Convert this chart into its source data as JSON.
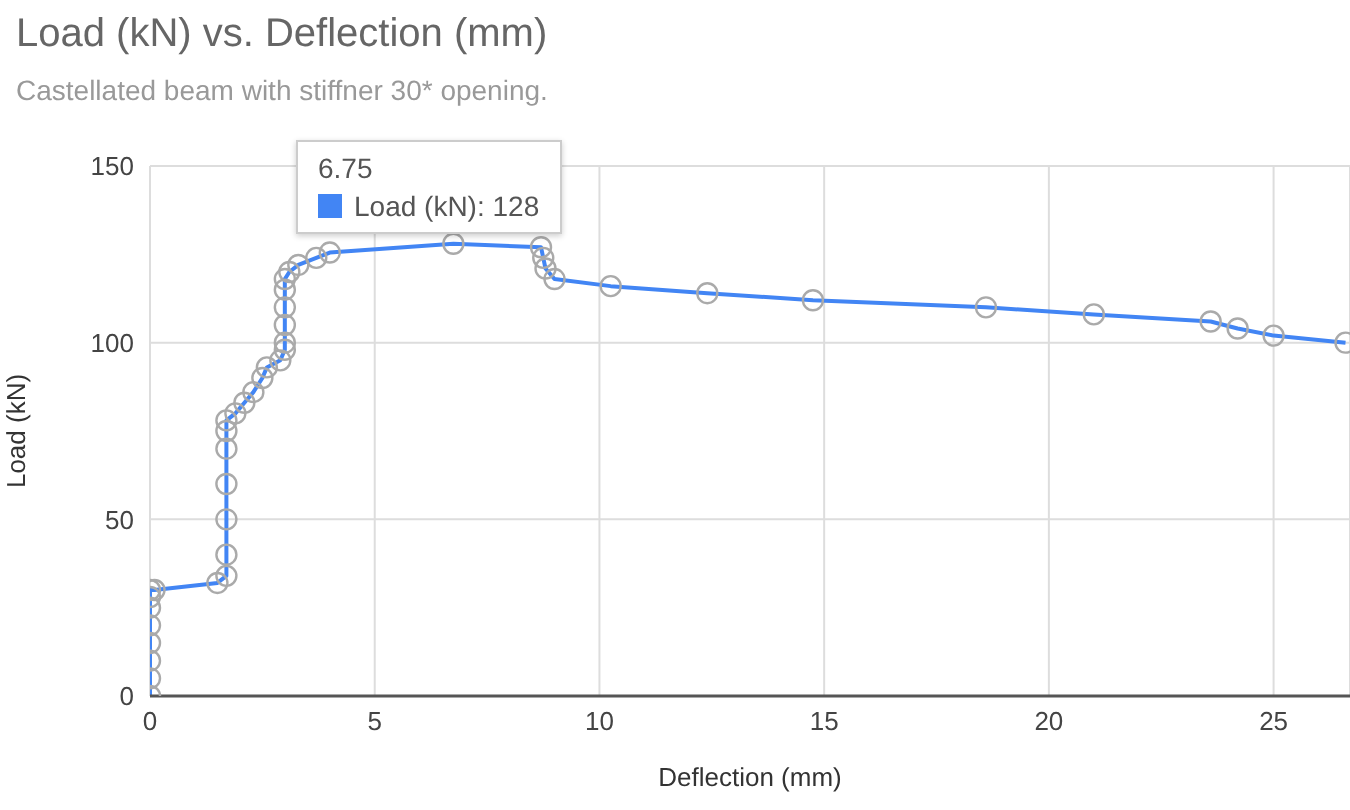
{
  "chart_data": {
    "type": "line",
    "title": "Load (kN) vs. Deflection (mm)",
    "subtitle": "Castellated beam with stiffner 30* opening.",
    "xlabel": "Deflection (mm)",
    "ylabel": "Load (kN)",
    "x": [
      0,
      0,
      0,
      0,
      0,
      0,
      0,
      0,
      0.1,
      1.5,
      1.7,
      1.7,
      1.7,
      1.7,
      1.7,
      1.7,
      1.7,
      1.9,
      2.1,
      2.3,
      2.5,
      2.6,
      2.9,
      3.0,
      3.0,
      3.0,
      3.0,
      3.0,
      3.0,
      3.1,
      3.3,
      3.7,
      4.0,
      6.75,
      8.7,
      8.75,
      8.8,
      9.0,
      10.25,
      12.4,
      14.75,
      18.6,
      21.0,
      23.6,
      24.2,
      25.0,
      26.6
    ],
    "series": [
      {
        "color": "#4285f4",
        "values": [
          0,
          5,
          10,
          15,
          20,
          25,
          28,
          30,
          30,
          32,
          34,
          40,
          50,
          60,
          70,
          75,
          78,
          80,
          83,
          86,
          90,
          93,
          95,
          98,
          100,
          105,
          110,
          115,
          118,
          120,
          122,
          124,
          125.5,
          128,
          127,
          124,
          121,
          118,
          116,
          114,
          112,
          110,
          108,
          106,
          104,
          102,
          100
        ]
      }
    ],
    "xlim": [
      0,
      26.7
    ],
    "xticks": [
      0,
      5,
      10,
      15,
      20,
      25
    ],
    "ylim": [
      0,
      150
    ],
    "yticks": [
      0,
      50,
      100,
      150
    ],
    "grid": true,
    "marker": "circle",
    "legend": false,
    "annotations": [
      "6.75",
      "Load (kN): 128"
    ]
  }
}
